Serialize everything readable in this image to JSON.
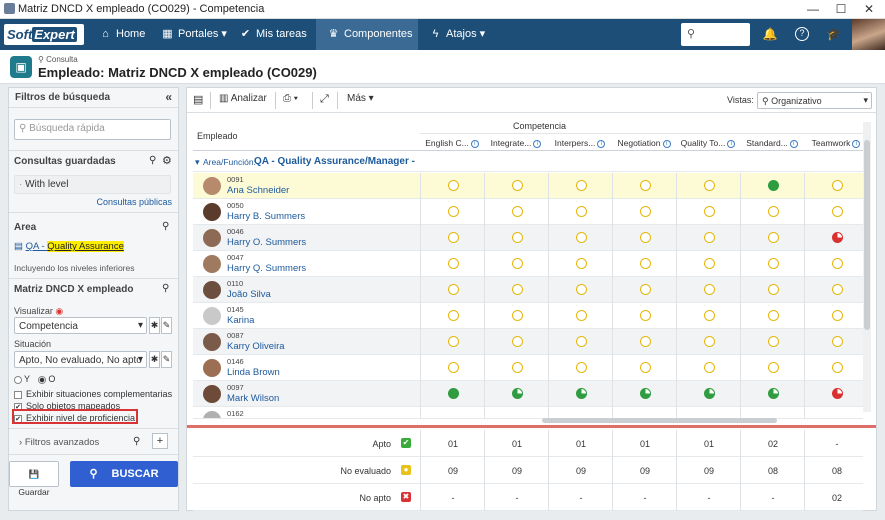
{
  "window": {
    "title": "Matriz DNCD X empleado (CO029) - Competencia",
    "minimize": "—",
    "maximize": "☐",
    "close": "✕"
  },
  "nav": {
    "logo_a": "Soft",
    "logo_b": "Expert",
    "items": [
      {
        "label": "Home",
        "icon": "home-icon"
      },
      {
        "label": "Portales",
        "icon": "grid-icon"
      },
      {
        "label": "Mis tareas",
        "icon": "check-icon"
      },
      {
        "label": "Componentes",
        "icon": "trophy-icon"
      },
      {
        "label": "Atajos",
        "icon": "bolt-icon"
      }
    ]
  },
  "header": {
    "subtitle": "Consulta",
    "title": "Empleado: Matriz DNCD X empleado (CO029)"
  },
  "left": {
    "panel_title": "Filtros de búsqueda",
    "search_placeholder": "Búsqueda rápida",
    "saved_title": "Consultas guardadas",
    "saved_item": "With level",
    "public_link": "Consultas públicas",
    "area_title": "Area",
    "area_code": "QA - ",
    "area_name": "Quality Assurance",
    "area_note": "Incluyendo los niveles inferiores",
    "matrix_title": "Matriz DNCD X empleado",
    "visualizar_label": "Visualizar",
    "visualizar_value": "Competencia",
    "situacion_label": "Situación",
    "situacion_value": "Apto, No evaluado, No apto",
    "radio_y": "Y",
    "radio_o": "O",
    "chk1": "Exhibir situaciones complementarias",
    "chk2": "Solo objetos mapeados",
    "chk3": "Exhibir nivel de proficiencia",
    "adv": "Filtros avanzados",
    "save_btn": "Guardar",
    "search_btn": "BUSCAR"
  },
  "toolbar": {
    "analyze": "Analizar",
    "more": "Más",
    "views_label": "Vistas:",
    "views_value": "Organizativo"
  },
  "grid": {
    "col_employee": "Empleado",
    "col_group": "Competencia",
    "competencies": [
      "English C...",
      "Integrate...",
      "Interpers...",
      "Negotiation",
      "Quality To...",
      "Standard...",
      "Teamwork"
    ],
    "group_label": "Area/Función:",
    "group_value": "QA - Quality Assurance/Manager -",
    "employees": [
      {
        "code": "0091",
        "name": "Ana Schneider",
        "levels": [
          "empty",
          "empty",
          "empty",
          "empty",
          "empty",
          "full",
          "empty"
        ]
      },
      {
        "code": "0050",
        "name": "Harry B. Summers",
        "levels": [
          "empty",
          "empty",
          "empty",
          "empty",
          "empty",
          "empty",
          "empty"
        ]
      },
      {
        "code": "0046",
        "name": "Harry O. Summers",
        "levels": [
          "empty",
          "empty",
          "empty",
          "empty",
          "empty",
          "empty",
          "red"
        ]
      },
      {
        "code": "0047",
        "name": "Harry Q. Summers",
        "levels": [
          "empty",
          "empty",
          "empty",
          "empty",
          "empty",
          "empty",
          "empty"
        ]
      },
      {
        "code": "0110",
        "name": "João Silva",
        "levels": [
          "empty",
          "empty",
          "empty",
          "empty",
          "empty",
          "empty",
          "empty"
        ]
      },
      {
        "code": "0145",
        "name": "Karina",
        "levels": [
          "empty",
          "empty",
          "empty",
          "empty",
          "empty",
          "empty",
          "empty"
        ]
      },
      {
        "code": "0087",
        "name": "Karry Oliveira",
        "levels": [
          "empty",
          "empty",
          "empty",
          "empty",
          "empty",
          "empty",
          "empty"
        ]
      },
      {
        "code": "0146",
        "name": "Linda Brown",
        "levels": [
          "empty",
          "empty",
          "empty",
          "empty",
          "empty",
          "empty",
          "empty"
        ]
      },
      {
        "code": "0097",
        "name": "Mark Wilson",
        "levels": [
          "full",
          "part",
          "part",
          "part",
          "part",
          "part",
          "red"
        ]
      },
      {
        "code": "0162",
        "name": "",
        "levels": []
      }
    ],
    "summary": [
      {
        "label": "Apto",
        "icon": "✔",
        "color": "#3aaa3a",
        "values": [
          "01",
          "01",
          "01",
          "01",
          "01",
          "02",
          "-"
        ]
      },
      {
        "label": "No evaluado",
        "icon": "●",
        "color": "#e8c21a",
        "values": [
          "09",
          "09",
          "09",
          "09",
          "09",
          "08",
          "08"
        ]
      },
      {
        "label": "No apto",
        "icon": "✖",
        "color": "#d93333",
        "values": [
          "-",
          "-",
          "-",
          "-",
          "-",
          "-",
          "02"
        ]
      }
    ]
  }
}
